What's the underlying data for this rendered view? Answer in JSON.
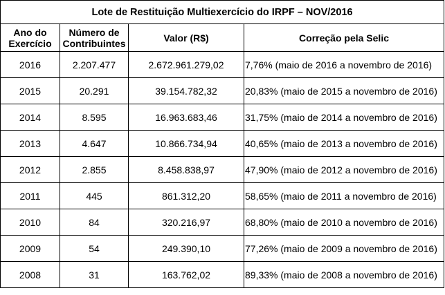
{
  "table": {
    "title": "Lote de Restituição Multiexercício do IRPF – NOV/2016",
    "headers": {
      "ano": "Ano do Exercício",
      "contribuintes": "Número de Contribuintes",
      "valor": "Valor (R$)",
      "selic": "Correção pela Selic"
    },
    "rows": [
      {
        "ano": "2016",
        "contribuintes": "2.207.477",
        "valor": "2.672.961.279,02",
        "selic": "7,76% (maio de 2016 a novembro de 2016)"
      },
      {
        "ano": "2015",
        "contribuintes": "20.291",
        "valor": "39.154.782,32",
        "selic": "20,83% (maio de 2015 a novembro de 2016)"
      },
      {
        "ano": "2014",
        "contribuintes": "8.595",
        "valor": "16.963.683,46",
        "selic": "31,75% (maio de 2014 a novembro de 2016)"
      },
      {
        "ano": "2013",
        "contribuintes": "4.647",
        "valor": "10.866.734,94",
        "selic": "40,65% (maio de 2013 a novembro de 2016)"
      },
      {
        "ano": "2012",
        "contribuintes": "2.855",
        "valor": "8.458.838,97",
        "selic": "47,90% (maio de 2012 a novembro de 2016)"
      },
      {
        "ano": "2011",
        "contribuintes": "445",
        "valor": "861.312,20",
        "selic": "58,65% (maio de 2011 a novembro de 2016)"
      },
      {
        "ano": "2010",
        "contribuintes": "84",
        "valor": "320.216,97",
        "selic": "68,80% (maio de 2010 a novembro de 2016)"
      },
      {
        "ano": "2009",
        "contribuintes": "54",
        "valor": "249.390,10",
        "selic": "77,26% (maio de 2009 a novembro de 2016)"
      },
      {
        "ano": "2008",
        "contribuintes": "31",
        "valor": "163.762,02",
        "selic": "89,33% (maio de 2008 a novembro de 2016)"
      }
    ]
  }
}
